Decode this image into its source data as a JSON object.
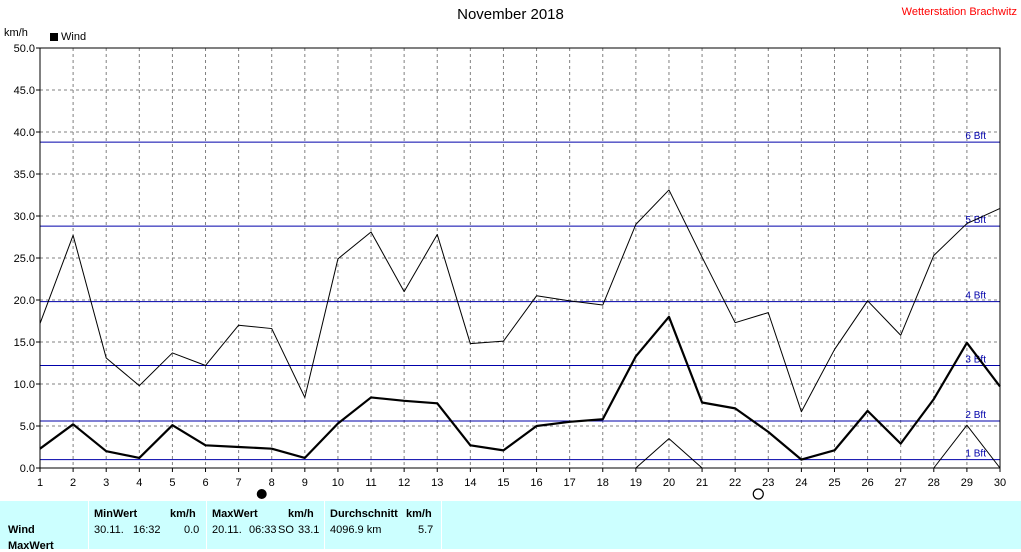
{
  "header": {
    "title": "November 2018",
    "station": "Wetterstation Brachwitz",
    "unit": "km/h",
    "legend_label": "Wind"
  },
  "colors": {
    "series": "#000000",
    "beaufort": "#0000aa",
    "grid": "#808080",
    "stats_bg": "#ccffff",
    "station": "#ff0000"
  },
  "chart_data": {
    "type": "line",
    "title": "November 2018",
    "ylabel": "km/h",
    "ylim": [
      0,
      50
    ],
    "yticks": [
      "0.0",
      "5.0",
      "10.0",
      "15.0",
      "20.0",
      "25.0",
      "30.0",
      "35.0",
      "40.0",
      "45.0",
      "50.0"
    ],
    "x": [
      1,
      2,
      3,
      4,
      5,
      6,
      7,
      8,
      9,
      10,
      11,
      12,
      13,
      14,
      15,
      16,
      17,
      18,
      19,
      20,
      21,
      22,
      23,
      24,
      25,
      26,
      27,
      28,
      29,
      30
    ],
    "grid": true,
    "series": [
      {
        "name": "Wind",
        "style": "bold",
        "values": [
          2.3,
          5.2,
          2.0,
          1.2,
          5.1,
          2.7,
          2.5,
          2.3,
          1.2,
          5.3,
          8.4,
          8.0,
          7.7,
          2.7,
          2.1,
          5.0,
          5.5,
          5.8,
          13.3,
          18.0,
          7.8,
          7.1,
          4.3,
          1.0,
          2.1,
          6.8,
          2.9,
          8.2,
          14.9,
          9.7
        ]
      },
      {
        "style": "thin",
        "values": [
          17.2,
          27.7,
          13.1,
          9.8,
          13.7,
          12.2,
          17.0,
          16.6,
          8.4,
          24.9,
          28.1,
          21.0,
          27.8,
          14.8,
          15.1,
          20.5,
          19.9,
          19.4,
          29.0,
          33.1,
          25.1,
          17.3,
          18.5,
          6.7,
          14.1,
          19.9,
          15.8,
          25.3,
          29.1,
          30.9
        ]
      },
      {
        "style": "thin-partial",
        "values": [
          null,
          null,
          null,
          null,
          null,
          null,
          null,
          null,
          null,
          null,
          null,
          null,
          null,
          null,
          null,
          null,
          null,
          null,
          0.0,
          3.5,
          0.0,
          null,
          null,
          null,
          null,
          null,
          null,
          0.0,
          5.1,
          0.0
        ]
      }
    ],
    "beaufort_lines": [
      {
        "label": "1 Bft",
        "value": 1.0
      },
      {
        "label": "2 Bft",
        "value": 5.6
      },
      {
        "label": "3 Bft",
        "value": 12.2
      },
      {
        "label": "4 Bft",
        "value": 19.8
      },
      {
        "label": "5 Bft",
        "value": 28.8
      },
      {
        "label": "6 Bft",
        "value": 38.8
      }
    ],
    "moon_phases": [
      {
        "day": 8,
        "phase": "full"
      },
      {
        "day": 23,
        "phase": "new"
      }
    ]
  },
  "stats": {
    "row_labels": [
      "Wind",
      "MaxWert"
    ],
    "min": {
      "header": "MinWert",
      "unit": "km/h",
      "date": "30.11.",
      "time": "16:32",
      "value": "0.0"
    },
    "max": {
      "header": "MaxWert",
      "unit": "km/h",
      "date": "20.11.",
      "time": "06:33",
      "dir": "SO",
      "value": "33.1"
    },
    "avg": {
      "header": "Durchschnitt",
      "unit": "km/h",
      "distance": "4096.9 km",
      "value": "5.7"
    }
  }
}
